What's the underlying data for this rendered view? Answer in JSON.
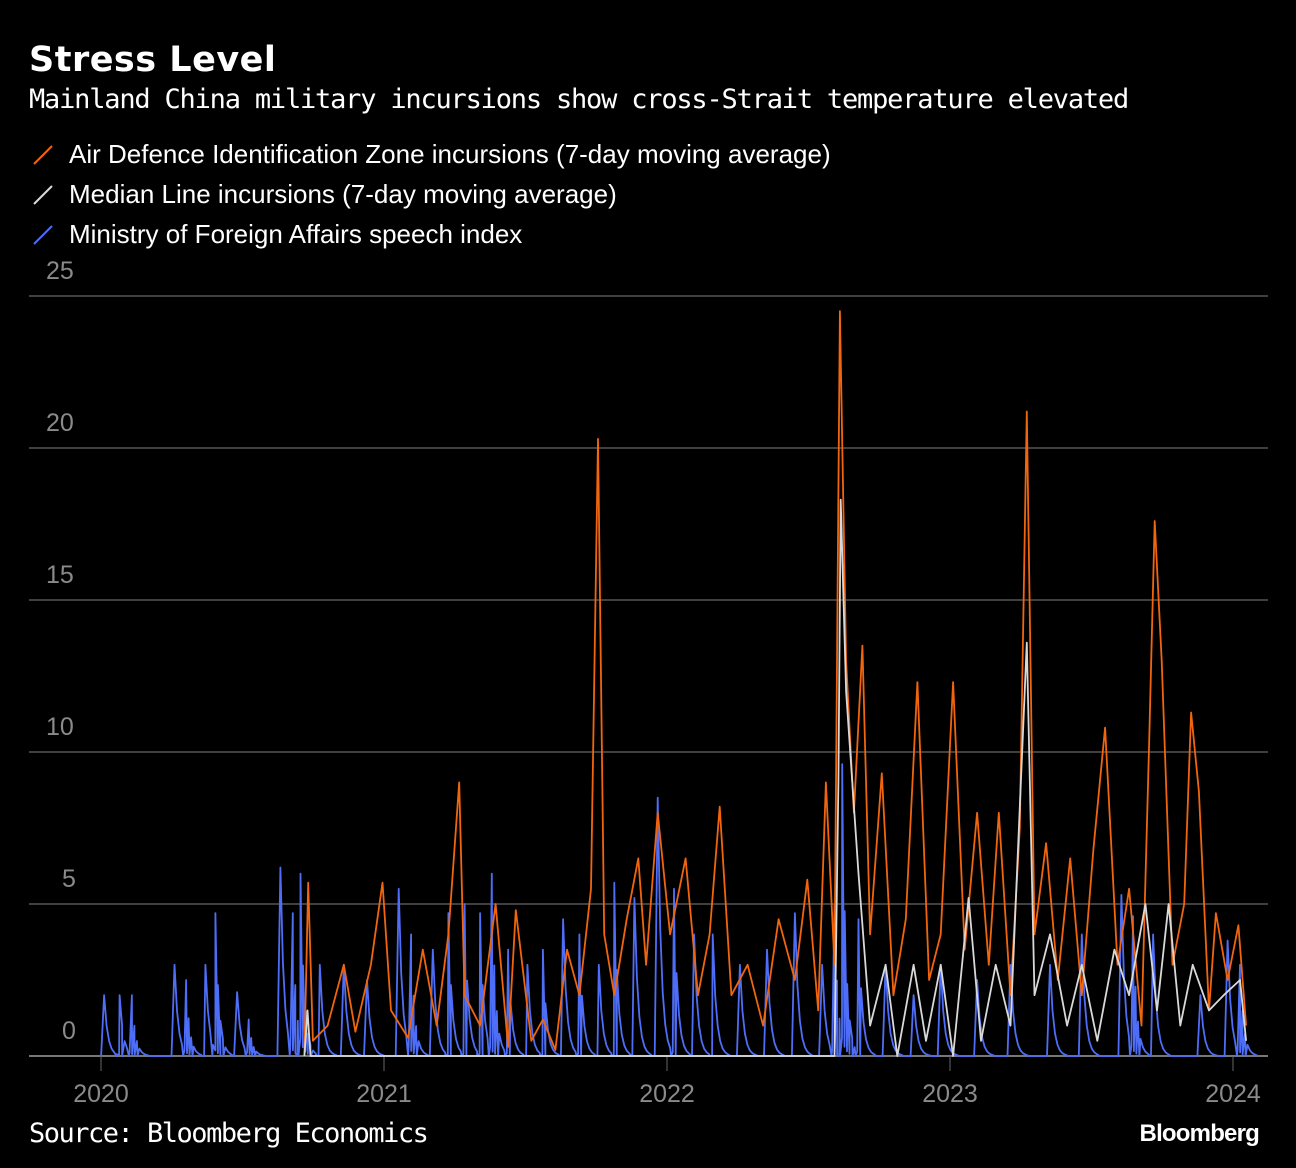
{
  "title": "Stress Level",
  "subtitle": "Mainland China military incursions show cross-Strait temperature elevated",
  "source": "Source: Bloomberg Economics",
  "logo": "Bloomberg",
  "chart_data": {
    "type": "line",
    "title": "Stress Level",
    "xlabel": "",
    "ylabel": "",
    "ylim": [
      0,
      25
    ],
    "yticks": [
      "0",
      "5",
      "10",
      "15",
      "20",
      "25"
    ],
    "xticks": [
      "2020",
      "2021",
      "2022",
      "2023",
      "2024"
    ],
    "grid": true,
    "legend_position": "top-left",
    "series": [
      {
        "name": "Air Defence Identification Zone incursions (7-day moving average)",
        "color": "#f0650e",
        "points": [
          [
            "2020-09-20",
            0
          ],
          [
            "2020-09-25",
            5.7
          ],
          [
            "2020-10-01",
            0.5
          ],
          [
            "2020-10-20",
            1
          ],
          [
            "2020-11-10",
            3
          ],
          [
            "2020-11-25",
            0.8
          ],
          [
            "2020-12-15",
            3
          ],
          [
            "2020-12-30",
            5.7
          ],
          [
            "2021-01-10",
            1.5
          ],
          [
            "2021-02-01",
            0.6
          ],
          [
            "2021-02-20",
            3.5
          ],
          [
            "2021-03-10",
            1
          ],
          [
            "2021-03-25",
            4
          ],
          [
            "2021-04-08",
            9
          ],
          [
            "2021-04-15",
            2
          ],
          [
            "2021-05-05",
            1
          ],
          [
            "2021-05-25",
            5
          ],
          [
            "2021-06-10",
            0.3
          ],
          [
            "2021-06-20",
            4.8
          ],
          [
            "2021-07-10",
            0.5
          ],
          [
            "2021-07-25",
            1.2
          ],
          [
            "2021-08-10",
            0.2
          ],
          [
            "2021-08-25",
            3.5
          ],
          [
            "2021-09-10",
            2
          ],
          [
            "2021-09-25",
            5.5
          ],
          [
            "2021-10-04",
            20.3
          ],
          [
            "2021-10-12",
            4
          ],
          [
            "2021-10-25",
            2
          ],
          [
            "2021-11-10",
            4.5
          ],
          [
            "2021-11-25",
            6.5
          ],
          [
            "2021-12-05",
            3
          ],
          [
            "2021-12-20",
            8
          ],
          [
            "2022-01-05",
            4
          ],
          [
            "2022-01-25",
            6.5
          ],
          [
            "2022-02-10",
            2
          ],
          [
            "2022-02-25",
            4
          ],
          [
            "2022-03-10",
            8.2
          ],
          [
            "2022-03-25",
            2
          ],
          [
            "2022-04-15",
            3
          ],
          [
            "2022-05-05",
            1
          ],
          [
            "2022-05-25",
            4.5
          ],
          [
            "2022-06-15",
            2.5
          ],
          [
            "2022-07-01",
            5.8
          ],
          [
            "2022-07-15",
            1.5
          ],
          [
            "2022-07-25",
            9
          ],
          [
            "2022-08-05",
            3
          ],
          [
            "2022-08-12",
            24.5
          ],
          [
            "2022-08-20",
            13
          ],
          [
            "2022-08-30",
            8
          ],
          [
            "2022-09-10",
            13.5
          ],
          [
            "2022-09-20",
            4
          ],
          [
            "2022-10-05",
            9.3
          ],
          [
            "2022-10-20",
            2
          ],
          [
            "2022-11-05",
            4.5
          ],
          [
            "2022-11-20",
            12.3
          ],
          [
            "2022-12-05",
            2.5
          ],
          [
            "2022-12-20",
            4
          ],
          [
            "2023-01-05",
            12.3
          ],
          [
            "2023-01-20",
            3.5
          ],
          [
            "2023-02-05",
            8
          ],
          [
            "2023-02-20",
            3
          ],
          [
            "2023-03-05",
            8
          ],
          [
            "2023-03-20",
            2
          ],
          [
            "2023-04-01",
            7.5
          ],
          [
            "2023-04-10",
            21.2
          ],
          [
            "2023-04-20",
            4
          ],
          [
            "2023-05-05",
            7
          ],
          [
            "2023-05-20",
            2.5
          ],
          [
            "2023-06-05",
            6.5
          ],
          [
            "2023-06-20",
            2
          ],
          [
            "2023-07-05",
            6.8
          ],
          [
            "2023-07-20",
            10.8
          ],
          [
            "2023-08-05",
            3
          ],
          [
            "2023-08-20",
            5.5
          ],
          [
            "2023-09-05",
            1
          ],
          [
            "2023-09-15",
            10.5
          ],
          [
            "2023-09-22",
            17.6
          ],
          [
            "2023-10-01",
            13
          ],
          [
            "2023-10-15",
            3
          ],
          [
            "2023-10-30",
            5
          ],
          [
            "2023-11-08",
            11.3
          ],
          [
            "2023-11-18",
            8.7
          ],
          [
            "2023-12-01",
            1.5
          ],
          [
            "2023-12-10",
            4.7
          ],
          [
            "2023-12-25",
            2.5
          ],
          [
            "2024-01-08",
            4.3
          ],
          [
            "2024-01-18",
            1
          ]
        ]
      },
      {
        "name": "Median Line incursions (7-day moving average)",
        "color": "#d9d9d9",
        "points": [
          [
            "2020-09-20",
            0
          ],
          [
            "2020-09-24",
            1.5
          ],
          [
            "2020-09-28",
            0
          ],
          [
            "2022-08-05",
            0
          ],
          [
            "2022-08-10",
            9
          ],
          [
            "2022-08-13",
            18.3
          ],
          [
            "2022-08-20",
            12
          ],
          [
            "2022-09-05",
            6
          ],
          [
            "2022-09-20",
            1
          ],
          [
            "2022-10-10",
            3
          ],
          [
            "2022-10-25",
            0
          ],
          [
            "2022-11-15",
            3
          ],
          [
            "2022-12-01",
            0.5
          ],
          [
            "2022-12-20",
            3
          ],
          [
            "2023-01-05",
            0
          ],
          [
            "2023-01-25",
            5.2
          ],
          [
            "2023-02-10",
            0.5
          ],
          [
            "2023-03-01",
            3
          ],
          [
            "2023-03-20",
            1
          ],
          [
            "2023-04-10",
            13.6
          ],
          [
            "2023-04-20",
            2
          ],
          [
            "2023-05-10",
            4
          ],
          [
            "2023-06-01",
            1
          ],
          [
            "2023-06-20",
            3
          ],
          [
            "2023-07-10",
            0.5
          ],
          [
            "2023-08-01",
            3.5
          ],
          [
            "2023-08-20",
            2
          ],
          [
            "2023-09-10",
            5
          ],
          [
            "2023-09-25",
            1.5
          ],
          [
            "2023-10-10",
            5
          ],
          [
            "2023-10-25",
            1
          ],
          [
            "2023-11-10",
            3
          ],
          [
            "2023-12-01",
            1.5
          ],
          [
            "2023-12-20",
            2
          ],
          [
            "2024-01-10",
            2.5
          ],
          [
            "2024-01-18",
            0.5
          ]
        ]
      },
      {
        "name": "Ministry of Foreign Affairs speech index",
        "color": "#4e6ef7",
        "points": [
          [
            "2020-01-05",
            2
          ],
          [
            "2020-01-25",
            2
          ],
          [
            "2020-02-10",
            2
          ],
          [
            "2020-04-05",
            3
          ],
          [
            "2020-04-20",
            2.5
          ],
          [
            "2020-05-15",
            3
          ],
          [
            "2020-05-28",
            4.7
          ],
          [
            "2020-06-25",
            2.1
          ],
          [
            "2020-07-10",
            1.2
          ],
          [
            "2020-08-20",
            6.2
          ],
          [
            "2020-09-05",
            4.7
          ],
          [
            "2020-09-15",
            6
          ],
          [
            "2020-10-10",
            3
          ],
          [
            "2020-11-10",
            3
          ],
          [
            "2020-12-10",
            2.5
          ],
          [
            "2021-01-20",
            5.5
          ],
          [
            "2021-02-05",
            4
          ],
          [
            "2021-03-05",
            3.5
          ],
          [
            "2021-03-25",
            4.7
          ],
          [
            "2021-04-15",
            5
          ],
          [
            "2021-05-05",
            4.7
          ],
          [
            "2021-05-20",
            6
          ],
          [
            "2021-06-10",
            3.5
          ],
          [
            "2021-07-05",
            3
          ],
          [
            "2021-07-25",
            3.5
          ],
          [
            "2021-08-20",
            4.5
          ],
          [
            "2021-09-10",
            4
          ],
          [
            "2021-10-05",
            3
          ],
          [
            "2021-10-25",
            5.7
          ],
          [
            "2021-11-20",
            5.2
          ],
          [
            "2021-12-20",
            8.5
          ],
          [
            "2022-01-10",
            5.5
          ],
          [
            "2022-02-05",
            4
          ],
          [
            "2022-03-01",
            4
          ],
          [
            "2022-04-05",
            3
          ],
          [
            "2022-05-10",
            3.5
          ],
          [
            "2022-06-15",
            4.7
          ],
          [
            "2022-07-20",
            3
          ],
          [
            "2022-08-05",
            5
          ],
          [
            "2022-08-15",
            9.6
          ],
          [
            "2022-09-05",
            4.5
          ],
          [
            "2022-10-10",
            3
          ],
          [
            "2022-11-15",
            2
          ],
          [
            "2022-12-20",
            3
          ],
          [
            "2023-02-05",
            2.5
          ],
          [
            "2023-03-20",
            3
          ],
          [
            "2023-05-10",
            3
          ],
          [
            "2023-06-20",
            4
          ],
          [
            "2023-08-10",
            5.3
          ],
          [
            "2023-08-25",
            4.6
          ],
          [
            "2023-09-20",
            4
          ],
          [
            "2023-11-20",
            2
          ],
          [
            "2023-12-25",
            3.8
          ],
          [
            "2024-01-10",
            3
          ]
        ]
      }
    ]
  }
}
